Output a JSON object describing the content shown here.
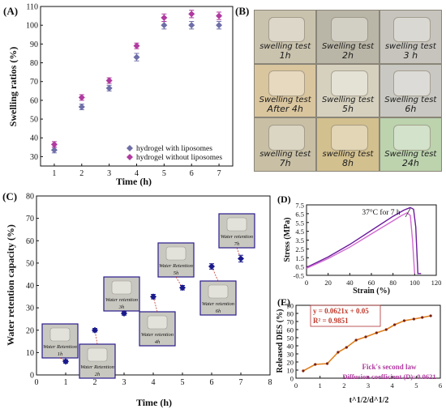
{
  "chart_data": [
    {
      "panel_label": "(A)",
      "type": "scatter",
      "xlabel": "Time (h)",
      "ylabel": "Swelling ratios (%)",
      "xlim": [
        0.5,
        7.5
      ],
      "ylim": [
        25,
        110
      ],
      "xticks": [
        "1",
        "2",
        "3",
        "4",
        "5",
        "6",
        "7"
      ],
      "yticks": [
        "30",
        "40",
        "50",
        "60",
        "70",
        "80",
        "90",
        "100",
        "110"
      ],
      "legend_position": "bottom-right",
      "series": [
        {
          "name": "hydrogel with liposomes",
          "color": "#6e6ea8",
          "x": [
            1,
            2,
            3,
            4,
            5,
            6,
            7
          ],
          "y": [
            33.5,
            56.5,
            66.5,
            83,
            100,
            100,
            100
          ],
          "err": [
            1.5,
            1.5,
            1.5,
            2,
            2,
            2,
            2
          ]
        },
        {
          "name": "hydrogel without liposomes",
          "color": "#b03aa0",
          "x": [
            1,
            2,
            3,
            4,
            5,
            6,
            7
          ],
          "y": [
            36.5,
            61.5,
            70.5,
            89,
            104,
            106,
            105
          ],
          "err": [
            1.5,
            1.5,
            1.5,
            1.5,
            2,
            2,
            2
          ]
        }
      ]
    },
    {
      "panel_label": "(B)",
      "type": "image-grid",
      "tiles": [
        {
          "line1": "swelling test",
          "line2": "1h"
        },
        {
          "line1": "Swelling test",
          "line2": "2h"
        },
        {
          "line1": "swelling test",
          "line2": "3 h"
        },
        {
          "line1": "Swelling test",
          "line2": "After 4h"
        },
        {
          "line1": "Swelling test",
          "line2": "5h"
        },
        {
          "line1": "Swelling test",
          "line2": "6h"
        },
        {
          "line1": "swelling test",
          "line2": "7h"
        },
        {
          "line1": "swelling test",
          "line2": "8h"
        },
        {
          "line1": "Swelling test",
          "line2": "24h"
        }
      ]
    },
    {
      "panel_label": "(C)",
      "type": "scatter",
      "xlabel": "Time (h)",
      "ylabel": "Water retention capacity (%)",
      "xlim": [
        0,
        8
      ],
      "ylim": [
        0,
        80
      ],
      "xticks": [
        "0",
        "1",
        "2",
        "3",
        "4",
        "5",
        "6",
        "7",
        "8"
      ],
      "yticks": [
        "0",
        "10",
        "20",
        "30",
        "40",
        "50",
        "60",
        "70",
        "80"
      ],
      "series": [
        {
          "color": "#1a1a8c",
          "x": [
            1,
            2,
            3,
            4,
            5,
            6,
            7
          ],
          "y": [
            6,
            20,
            27.5,
            35,
            39,
            48.5,
            52
          ],
          "err": [
            0.8,
            0.8,
            0.8,
            1,
            1,
            1.2,
            1.5
          ]
        }
      ],
      "insets": [
        {
          "text": "Water Retention",
          "sub": "1h"
        },
        {
          "text": "Water Retention",
          "sub": "2h"
        },
        {
          "text": "Water retention",
          "sub": "3h"
        },
        {
          "text": "Water retention",
          "sub": "4h"
        },
        {
          "text": "Water Retention",
          "sub": "5h"
        },
        {
          "text": "Water retention",
          "sub": "6h"
        },
        {
          "text": "Water retention",
          "sub": "7h"
        }
      ]
    },
    {
      "panel_label": "(D)",
      "type": "line",
      "xlabel": "Strain (%)",
      "ylabel": "Stress (MPa)",
      "xlim": [
        0,
        120
      ],
      "ylim": [
        -0.5,
        7.5
      ],
      "xticks": [
        "0",
        "20",
        "40",
        "60",
        "80",
        "100",
        "120"
      ],
      "yticks": [
        "-0.5",
        "0.5",
        "1.5",
        "2.5",
        "3.5",
        "4.5",
        "5.5",
        "6.5",
        "7.5"
      ],
      "annotation": "37°C for 7 h",
      "series": [
        {
          "color": "#6a1b9a",
          "x": [
            0,
            20,
            40,
            60,
            80,
            90,
            96,
            99,
            101,
            103,
            106
          ],
          "y": [
            0.4,
            1.6,
            3.0,
            4.6,
            6.2,
            6.9,
            7.2,
            7.0,
            5.0,
            -0.3,
            -0.3
          ]
        },
        {
          "color": "#d26ad2",
          "x": [
            0,
            20,
            40,
            60,
            80,
            88,
            93,
            96,
            98,
            100
          ],
          "y": [
            0.3,
            1.4,
            2.7,
            4.2,
            5.7,
            6.3,
            6.6,
            6.3,
            3.5,
            -0.3
          ]
        }
      ]
    },
    {
      "panel_label": "(E)",
      "type": "line",
      "xlabel": "t^1/2/d^1/2",
      "ylabel": "Released DES (%)",
      "xlim": [
        0,
        6
      ],
      "ylim": [
        0,
        90
      ],
      "xticks": [
        "0",
        "1",
        "2",
        "3",
        "4",
        "5",
        "6"
      ],
      "yticks": [
        "0",
        "10",
        "20",
        "30",
        "40",
        "50",
        "60",
        "70",
        "80",
        "90"
      ],
      "equation": "y = 0.0621x + 0.05",
      "r_squared": "R² = 0.9851",
      "note_law": "Fick's second law",
      "note_coef": "Diffusion coefficient (D): 0.0621",
      "series": [
        {
          "color": "#7a1f10",
          "x": [
            0.3,
            0.8,
            1.3,
            1.75,
            2.1,
            2.5,
            2.9,
            3.35,
            3.75,
            4.1,
            4.5,
            4.9,
            5.25,
            5.6
          ],
          "y": [
            9,
            17,
            18,
            32,
            38,
            47,
            51,
            56,
            60,
            66,
            71,
            73,
            75,
            77
          ]
        }
      ]
    }
  ]
}
